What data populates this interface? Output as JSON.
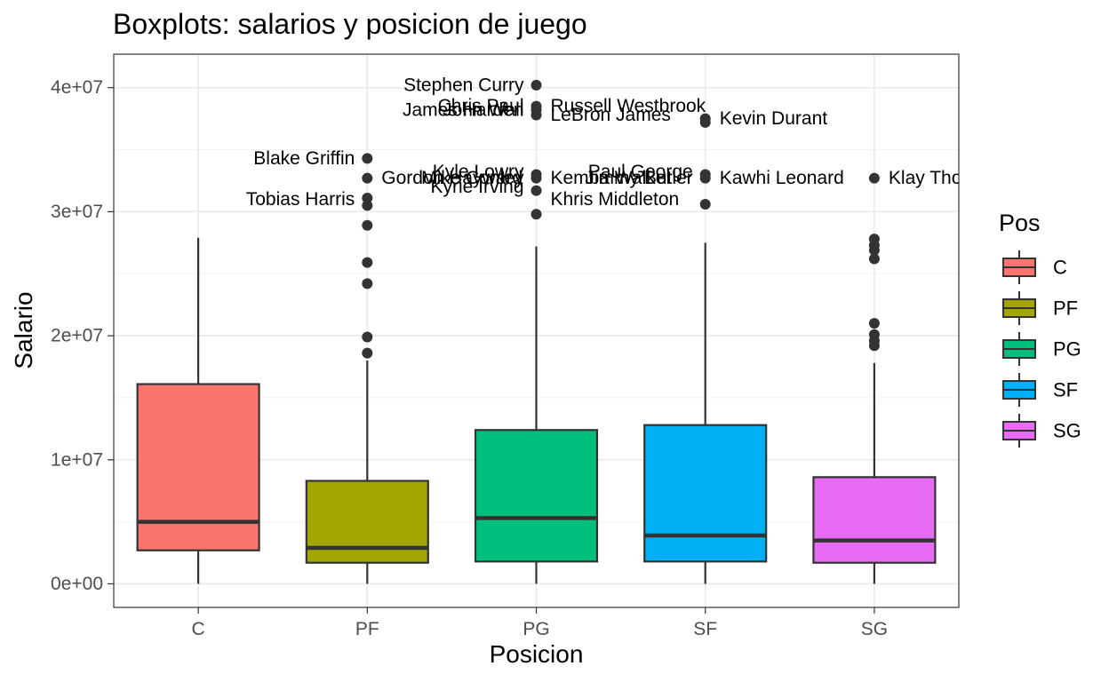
{
  "chart_data": {
    "type": "boxplot",
    "title": "Boxplots: salarios y posicion de juego",
    "xlabel": "Posicion",
    "ylabel": "Salario",
    "ylim": [
      -1900000.0,
      42700000.0
    ],
    "yticks": [
      0,
      10000000,
      20000000,
      30000000,
      40000000
    ],
    "ytick_labels": [
      "0e+00",
      "1e+07",
      "2e+07",
      "3e+07",
      "4e+07"
    ],
    "grid": true,
    "legend": {
      "title": "Pos",
      "position": "right"
    },
    "categories": [
      "C",
      "PF",
      "PG",
      "SF",
      "SG"
    ],
    "boxes": [
      {
        "category": "C",
        "color": "#F8766D",
        "whisker_low": 0,
        "q1": 2700000,
        "median": 5000000,
        "q3": 16100000,
        "whisker_high": 27900000,
        "outliers": []
      },
      {
        "category": "PF",
        "color": "#A3A500",
        "whisker_low": 0,
        "q1": 1700000,
        "median": 2900000,
        "q3": 8300000,
        "whisker_high": 18000000,
        "outliers": [
          34300000,
          32700000,
          31100000,
          30500000,
          28900000,
          25900000,
          24200000,
          19900000,
          18600000
        ]
      },
      {
        "category": "PG",
        "color": "#00BF7D",
        "whisker_low": 0,
        "q1": 1800000,
        "median": 5300000,
        "q3": 12400000,
        "whisker_high": 27200000,
        "outliers": [
          40200000,
          38500000,
          38200000,
          37800000,
          33000000,
          32700000,
          31700000,
          29800000
        ]
      },
      {
        "category": "SF",
        "color": "#00B0F6",
        "whisker_low": 0,
        "q1": 1800000,
        "median": 3900000,
        "q3": 12800000,
        "whisker_high": 27500000,
        "outliers": [
          37500000,
          37200000,
          33000000,
          32700000,
          30600000
        ]
      },
      {
        "category": "SG",
        "color": "#E76BF3",
        "whisker_low": 0,
        "q1": 1700000,
        "median": 3500000,
        "q3": 8600000,
        "whisker_high": 17800000,
        "outliers": [
          32700000,
          27800000,
          27300000,
          26900000,
          26200000,
          21000000,
          20100000,
          19600000,
          19200000
        ]
      }
    ],
    "annotations": [
      {
        "text": "Stephen Curry",
        "category": "PG",
        "y": 40200000,
        "side": "left"
      },
      {
        "text": "Chris Paul",
        "category": "PG",
        "y": 38500000,
        "side": "left"
      },
      {
        "text": "James Harden",
        "category": "PG",
        "y": 38200000,
        "side": "left"
      },
      {
        "text": "John Wall",
        "category": "PG",
        "y": 38200000,
        "side": "left"
      },
      {
        "text": "Russell Westbrook",
        "category": "PG",
        "y": 38500000,
        "side": "right"
      },
      {
        "text": "LeBron James",
        "category": "PG",
        "y": 37800000,
        "side": "right"
      },
      {
        "text": "Kevin Durant",
        "category": "SF",
        "y": 37500000,
        "side": "right"
      },
      {
        "text": "Blake Griffin",
        "category": "PF",
        "y": 34300000,
        "side": "left"
      },
      {
        "text": "Tobias Harris",
        "category": "PF",
        "y": 31000000,
        "side": "left"
      },
      {
        "text": "Gordon Hayward",
        "category": "PF",
        "y": 32700000,
        "side": "right"
      },
      {
        "text": "Mike Conley",
        "category": "PG",
        "y": 32700000,
        "side": "left"
      },
      {
        "text": "Kyle Lowry",
        "category": "PG",
        "y": 33200000,
        "side": "left"
      },
      {
        "text": "Kyrie Irving",
        "category": "PG",
        "y": 32000000,
        "side": "left"
      },
      {
        "text": "Kemba Walker",
        "category": "PG",
        "y": 32700000,
        "side": "right"
      },
      {
        "text": "Khris Middleton",
        "category": "PG",
        "y": 31000000,
        "side": "right"
      },
      {
        "text": "Paul George",
        "category": "SF",
        "y": 33200000,
        "side": "left"
      },
      {
        "text": "Jimmy Butler",
        "category": "SF",
        "y": 32700000,
        "side": "left"
      },
      {
        "text": "Kawhi Leonard",
        "category": "SF",
        "y": 32700000,
        "side": "right"
      },
      {
        "text": "Klay Thompson",
        "category": "SG",
        "y": 32700000,
        "side": "right"
      }
    ]
  }
}
